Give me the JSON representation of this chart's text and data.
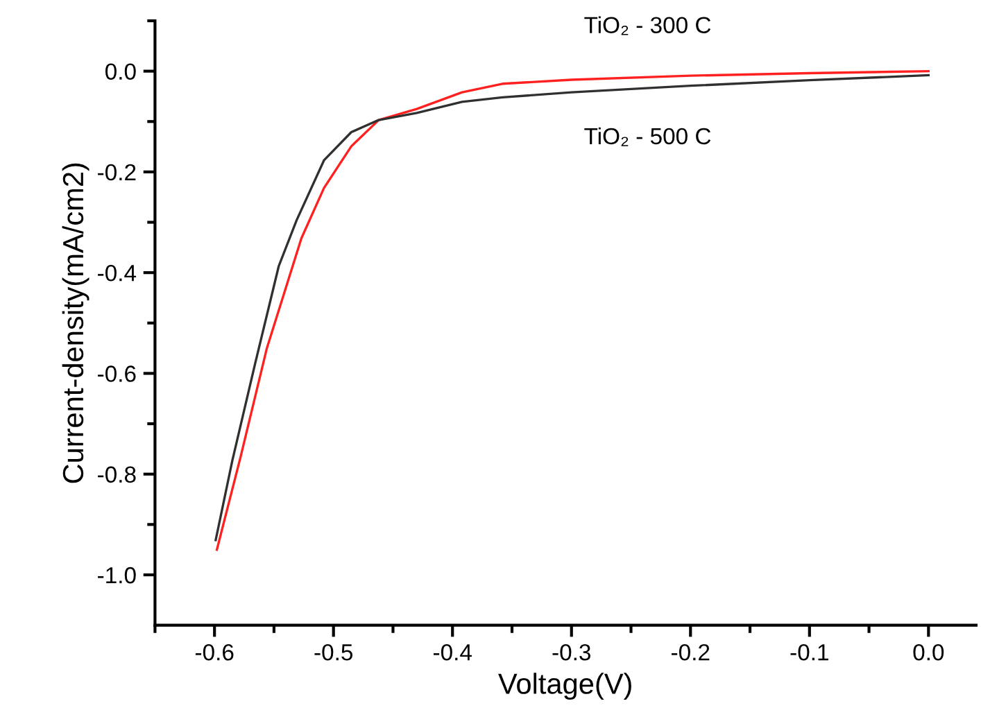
{
  "chart_data": {
    "type": "line",
    "xlabel": "Voltage(V)",
    "ylabel": "Current-density(mA/cm2)",
    "xlim": [
      -0.65,
      0.04
    ],
    "ylim": [
      -1.1,
      0.1
    ],
    "xticks": [
      {
        "value": -0.65,
        "label": null
      },
      -0.6,
      {
        "value": -0.55,
        "label": null
      },
      -0.5,
      {
        "value": -0.45,
        "label": null
      },
      -0.4,
      {
        "value": -0.35,
        "label": null
      },
      -0.3,
      {
        "value": -0.25,
        "label": null
      },
      -0.2,
      {
        "value": -0.15,
        "label": null
      },
      -0.1,
      {
        "value": -0.05,
        "label": null
      },
      {
        "value": 0,
        "label": "0.0"
      }
    ],
    "yticks": [
      {
        "value": -1,
        "label": "-1.0"
      },
      {
        "value": -0.9,
        "label": null
      },
      -0.8,
      {
        "value": -0.7,
        "label": null
      },
      -0.6,
      {
        "value": -0.5,
        "label": null
      },
      -0.4,
      {
        "value": -0.3,
        "label": null
      },
      -0.2,
      {
        "value": -0.1,
        "label": null
      },
      {
        "value": 0,
        "label": "0.0"
      },
      {
        "value": 0.1,
        "label": null
      }
    ],
    "grid": false,
    "legend": false,
    "marker": "none",
    "line_style": "solid",
    "series": [
      {
        "name": "TiO₂ - 300 C",
        "color": "#ff2020",
        "x": [
          -0.598,
          -0.578,
          -0.556,
          -0.527,
          -0.508,
          -0.485,
          -0.462,
          -0.43,
          -0.392,
          -0.358,
          -0.3,
          -0.2,
          -0.1,
          0.0
        ],
        "values": [
          -0.95,
          -0.765,
          -0.55,
          -0.332,
          -0.232,
          -0.149,
          -0.097,
          -0.075,
          -0.042,
          -0.025,
          -0.017,
          -0.009,
          -0.004,
          0.0
        ]
      },
      {
        "name": "TiO₂ - 500 C",
        "color": "#303030",
        "x": [
          -0.599,
          -0.585,
          -0.566,
          -0.546,
          -0.531,
          -0.508,
          -0.485,
          -0.462,
          -0.43,
          -0.392,
          -0.358,
          -0.3,
          -0.2,
          -0.1,
          0.0
        ],
        "values": [
          -0.931,
          -0.773,
          -0.582,
          -0.387,
          -0.296,
          -0.177,
          -0.121,
          -0.097,
          -0.083,
          -0.061,
          -0.052,
          -0.042,
          -0.029,
          -0.018,
          -0.008
        ]
      }
    ]
  }
}
